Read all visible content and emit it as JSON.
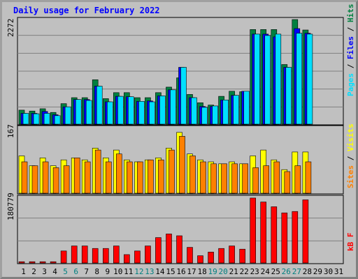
{
  "chart_data": {
    "title": "Daily usage for February 2022",
    "type": "bar",
    "days": [
      "1",
      "2",
      "3",
      "4",
      "5",
      "6",
      "7",
      "8",
      "9",
      "10",
      "11",
      "12",
      "13",
      "14",
      "15",
      "16",
      "17",
      "18",
      "19",
      "20",
      "21",
      "22",
      "23",
      "24",
      "25",
      "26",
      "27",
      "28",
      "29",
      "30",
      "31"
    ],
    "weekend_days": [
      "5",
      "6",
      "12",
      "13",
      "19",
      "20",
      "26",
      "27"
    ],
    "panels": [
      {
        "id": "top",
        "ymax_label": "2272",
        "ymax": 2272,
        "right_label": {
          "pages": "Pages",
          "files": "Files",
          "hits": "Hits",
          "sep": " / "
        },
        "series": [
          {
            "name": "Hits",
            "color": "#008040",
            "values": [
              305,
              285,
              335,
              255,
              445,
              575,
              575,
              965,
              555,
              685,
              685,
              575,
              575,
              685,
              805,
              1005,
              645,
              465,
              415,
              605,
              715,
              705,
              2055,
              2055,
              2055,
              1295,
              2272,
              2045
            ]
          },
          {
            "name": "Files",
            "color": "#0000ff",
            "values": [
              235,
              235,
              275,
              205,
              375,
              535,
              535,
              825,
              485,
              605,
              595,
              495,
              505,
              615,
              745,
              1235,
              575,
              385,
              385,
              525,
              625,
              715,
              1955,
              1955,
              1895,
              1235,
              2075,
              1975
            ]
          },
          {
            "name": "Pages",
            "color": "#00e0ff",
            "values": [
              235,
              225,
              235,
              185,
              375,
              535,
              515,
              825,
              485,
              605,
              595,
              495,
              485,
              615,
              745,
              1235,
              575,
              365,
              395,
              525,
              625,
              715,
              1955,
              1925,
              1955,
              1235,
              1975,
              1955
            ]
          }
        ]
      },
      {
        "id": "mid",
        "ymax_label": "167",
        "ymax": 167,
        "right_label": {
          "sites": "Sites",
          "visits": "Visits",
          "sep": " / "
        },
        "series": [
          {
            "name": "Visits",
            "color": "#ffff00",
            "values": [
              95,
              70,
              90,
              70,
              85,
              90,
              85,
              115,
              90,
              110,
              85,
              80,
              85,
              90,
              115,
              155,
              100,
              85,
              80,
              75,
              80,
              75,
              95,
              110,
              85,
              60,
              105,
              105
            ]
          },
          {
            "name": "Sites",
            "color": "#ff8000",
            "values": [
              80,
              70,
              80,
              65,
              70,
              90,
              80,
              110,
              80,
              100,
              80,
              80,
              85,
              85,
              110,
              145,
              95,
              80,
              75,
              75,
              75,
              75,
              65,
              70,
              80,
              55,
              70,
              80
            ]
          }
        ]
      },
      {
        "id": "bot",
        "ymax_label": "180779",
        "ymax": 180779,
        "right_label": {
          "kbf": "kB F"
        },
        "series": [
          {
            "name": "kB F",
            "color": "#ff0000",
            "values": [
              3500,
              3500,
              3500,
              3500,
              33000,
              47000,
              47000,
              40000,
              40000,
              47000,
              23000,
              33000,
              47000,
              70000,
              80000,
              75000,
              43000,
              20000,
              30000,
              40000,
              47000,
              38000,
              179000,
              168000,
              155000,
              138000,
              142000,
              174000
            ]
          }
        ]
      }
    ]
  }
}
